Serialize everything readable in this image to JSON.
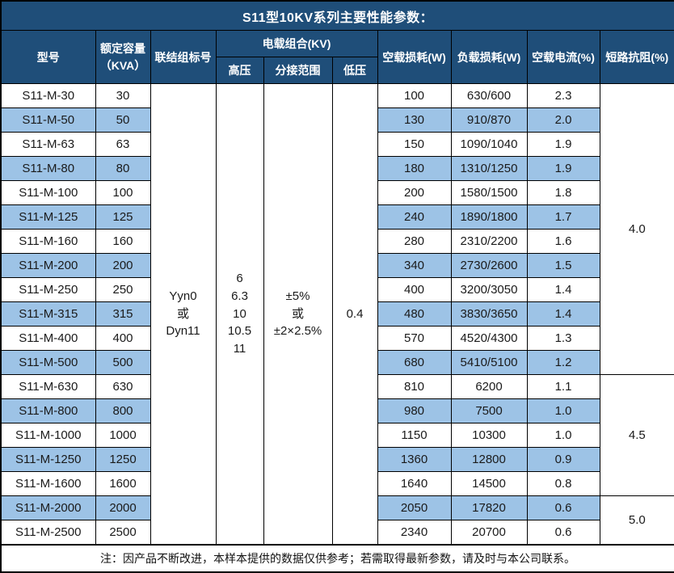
{
  "title": "S11型10KV系列主要性能参数：",
  "colors": {
    "header_bg": "#1F4E79",
    "alt_row_bg": "#9DC3E6",
    "border": "#000000",
    "header_text": "#FFFFFF",
    "body_text": "#1A1A1A"
  },
  "header": {
    "model": "型号",
    "capacity": "额定容量\n（KVA）",
    "connection": "联结组标号",
    "voltage_group": "电载组合(KV)",
    "hv": "高压",
    "tap_range": "分接范围",
    "lv": "低压",
    "no_load_loss": "空载损耗(W)",
    "load_loss": "负载损耗(W)",
    "no_load_current": "空载电流(%)",
    "impedance": "短路抗阻(%)"
  },
  "merged": {
    "connection": "Yyn0\n或\nDyn11",
    "hv": "6\n6.3\n10\n10.5\n11",
    "tap_range": "±5%\n或\n±2×2.5%",
    "lv": "0.4"
  },
  "impedance_groups": [
    {
      "value": "4.0",
      "rows": 12
    },
    {
      "value": "4.5",
      "rows": 5
    },
    {
      "value": "5.0",
      "rows": 2
    }
  ],
  "rows": [
    {
      "model": "S11-M-30",
      "capacity": "30",
      "no_load_loss": "100",
      "load_loss": "630/600",
      "no_load_current": "2.3"
    },
    {
      "model": "S11-M-50",
      "capacity": "50",
      "no_load_loss": "130",
      "load_loss": "910/870",
      "no_load_current": "2.0"
    },
    {
      "model": "S11-M-63",
      "capacity": "63",
      "no_load_loss": "150",
      "load_loss": "1090/1040",
      "no_load_current": "1.9"
    },
    {
      "model": "S11-M-80",
      "capacity": "80",
      "no_load_loss": "180",
      "load_loss": "1310/1250",
      "no_load_current": "1.9"
    },
    {
      "model": "S11-M-100",
      "capacity": "100",
      "no_load_loss": "200",
      "load_loss": "1580/1500",
      "no_load_current": "1.8"
    },
    {
      "model": "S11-M-125",
      "capacity": "125",
      "no_load_loss": "240",
      "load_loss": "1890/1800",
      "no_load_current": "1.7"
    },
    {
      "model": "S11-M-160",
      "capacity": "160",
      "no_load_loss": "280",
      "load_loss": "2310/2200",
      "no_load_current": "1.6"
    },
    {
      "model": "S11-M-200",
      "capacity": "200",
      "no_load_loss": "340",
      "load_loss": "2730/2600",
      "no_load_current": "1.5"
    },
    {
      "model": "S11-M-250",
      "capacity": "250",
      "no_load_loss": "400",
      "load_loss": "3200/3050",
      "no_load_current": "1.4"
    },
    {
      "model": "S11-M-315",
      "capacity": "315",
      "no_load_loss": "480",
      "load_loss": "3830/3650",
      "no_load_current": "1.4"
    },
    {
      "model": "S11-M-400",
      "capacity": "400",
      "no_load_loss": "570",
      "load_loss": "4520/4300",
      "no_load_current": "1.3"
    },
    {
      "model": "S11-M-500",
      "capacity": "500",
      "no_load_loss": "680",
      "load_loss": "5410/5100",
      "no_load_current": "1.2"
    },
    {
      "model": "S11-M-630",
      "capacity": "630",
      "no_load_loss": "810",
      "load_loss": "6200",
      "no_load_current": "1.1"
    },
    {
      "model": "S11-M-800",
      "capacity": "800",
      "no_load_loss": "980",
      "load_loss": "7500",
      "no_load_current": "1.0"
    },
    {
      "model": "S11-M-1000",
      "capacity": "1000",
      "no_load_loss": "1150",
      "load_loss": "10300",
      "no_load_current": "1.0"
    },
    {
      "model": "S11-M-1250",
      "capacity": "1250",
      "no_load_loss": "1360",
      "load_loss": "12800",
      "no_load_current": "0.9"
    },
    {
      "model": "S11-M-1600",
      "capacity": "1600",
      "no_load_loss": "1640",
      "load_loss": "14500",
      "no_load_current": "0.8"
    },
    {
      "model": "S11-M-2000",
      "capacity": "2000",
      "no_load_loss": "2050",
      "load_loss": "17820",
      "no_load_current": "0.6"
    },
    {
      "model": "S11-M-2500",
      "capacity": "2500",
      "no_load_loss": "2340",
      "load_loss": "20700",
      "no_load_current": "0.6"
    }
  ],
  "note": "注：因产品不断改进，本样本提供的数据仅供参考；若需取得最新参数，请及时与本公司联系。"
}
